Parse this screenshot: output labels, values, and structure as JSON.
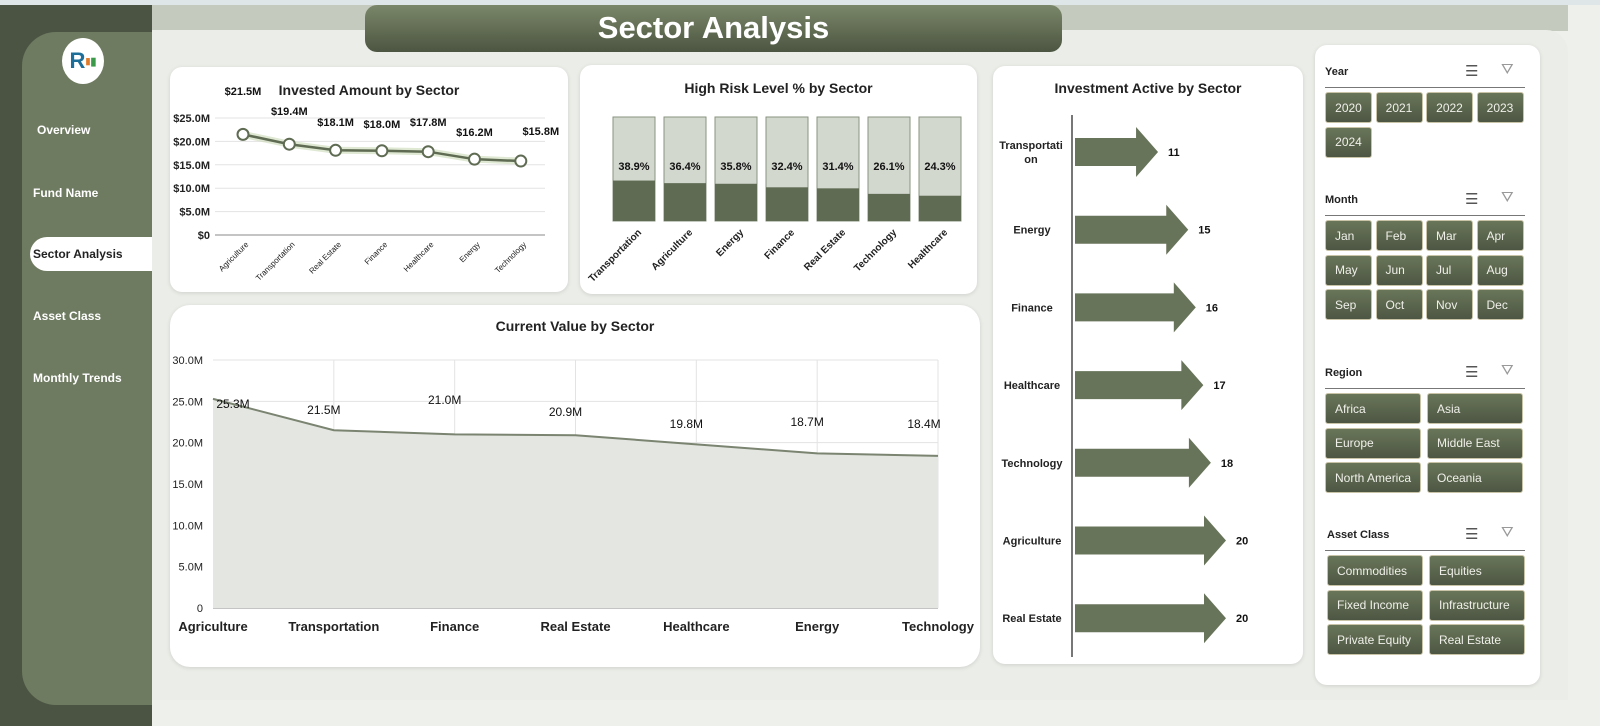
{
  "title": "Sector Analysis",
  "logo_text": "RK",
  "nav": [
    {
      "label": "Overview"
    },
    {
      "label": "Fund Name"
    },
    {
      "label": "Sector Analysis",
      "active": true
    },
    {
      "label": "Asset Class"
    },
    {
      "label": "Monthly Trends"
    }
  ],
  "colors": {
    "accent": "#5f6b52",
    "sidebar": "#6e7b60",
    "sidebar_dark": "#4b5443",
    "bar_light": "#d3d8cf"
  },
  "chart_data": [
    {
      "type": "line",
      "title": "Invested Amount by Sector",
      "categories": [
        "Agriculture",
        "Transportation",
        "Real Estate",
        "Finance",
        "Healthcare",
        "Energy",
        "Technology"
      ],
      "values": [
        21.5,
        19.4,
        18.1,
        18.0,
        17.8,
        16.2,
        15.8
      ],
      "labels": [
        "$21.5M",
        "$19.4M",
        "$18.1M",
        "$18.0M",
        "$17.8M",
        "$16.2M",
        "$15.8M"
      ],
      "yticks": [
        "$0",
        "$5.0M",
        "$10.0M",
        "$15.0M",
        "$20.0M",
        "$25.0M"
      ],
      "ylim": [
        0,
        25
      ],
      "unit": "$M",
      "grid": true
    },
    {
      "type": "bar",
      "title": "High Risk Level % by Sector",
      "categories": [
        "Transportation",
        "Agriculture",
        "Energy",
        "Finance",
        "Real Estate",
        "Technology",
        "Healthcare"
      ],
      "values": [
        38.9,
        36.4,
        35.8,
        32.4,
        31.4,
        26.1,
        24.3
      ],
      "labels": [
        "38.9%",
        "36.4%",
        "35.8%",
        "32.4%",
        "31.4%",
        "26.1%",
        "24.3%"
      ],
      "ylim": [
        0,
        100
      ]
    },
    {
      "type": "area",
      "title": "Current Value by Sector",
      "categories": [
        "Agriculture",
        "Transportation",
        "Finance",
        "Real Estate",
        "Healthcare",
        "Energy",
        "Technology"
      ],
      "values": [
        25.3,
        21.5,
        21.0,
        20.9,
        19.8,
        18.7,
        18.4
      ],
      "labels": [
        "25.3M",
        "21.5M",
        "21.0M",
        "20.9M",
        "19.8M",
        "18.7M",
        "18.4M"
      ],
      "yticks": [
        "0",
        "5.0M",
        "10.0M",
        "15.0M",
        "20.0M",
        "25.0M",
        "30.0M"
      ],
      "ylim": [
        0,
        30
      ],
      "grid": true
    },
    {
      "type": "bar",
      "orientation": "horizontal",
      "title": "Investment Active by Sector",
      "categories": [
        "Transportation",
        "Energy",
        "Finance",
        "Healthcare",
        "Technology",
        "Agriculture",
        "Real Estate"
      ],
      "values": [
        11,
        15,
        16,
        17,
        18,
        20,
        20
      ]
    }
  ],
  "slicers": [
    {
      "title": "Year",
      "items": [
        "2020",
        "2021",
        "2022",
        "2023",
        "2024"
      ],
      "cols": 4
    },
    {
      "title": "Month",
      "items": [
        "Jan",
        "Feb",
        "Mar",
        "Apr",
        "May",
        "Jun",
        "Jul",
        "Aug",
        "Sep",
        "Oct",
        "Nov",
        "Dec"
      ],
      "cols": 4
    },
    {
      "title": "Region",
      "items": [
        "Africa",
        "Asia",
        "Europe",
        "Middle East",
        "North America",
        "Oceania"
      ],
      "cols": 2
    },
    {
      "title": "Asset Class",
      "items": [
        "Commodities",
        "Equities",
        "Fixed Income",
        "Infrastructure",
        "Private Equity",
        "Real Estate"
      ],
      "cols": 2
    }
  ]
}
